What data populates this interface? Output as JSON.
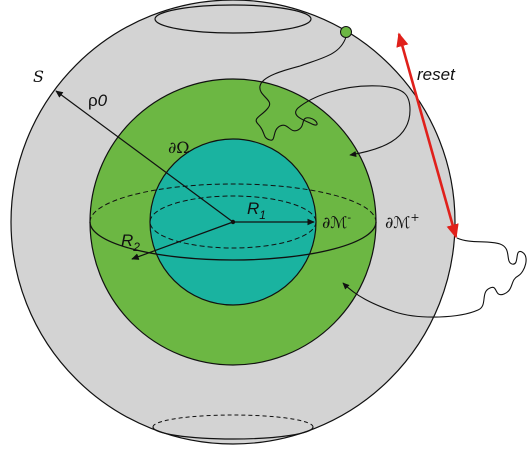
{
  "labels": {
    "s": "S",
    "rho": "ρ",
    "rho_sub": "0",
    "reset": "reset",
    "d_omega": "∂Ω",
    "r1_main": "R",
    "r1_sub": "1",
    "r2_main": "R",
    "r2_sub": "2",
    "dm_minus_main": "∂ℳ",
    "dm_minus_sup": "-",
    "dm_plus_main": "∂ℳ",
    "dm_plus_sup": "+"
  },
  "colors": {
    "outer_sphere": "#d3d3d3",
    "middle_sphere": "#6cb743",
    "inner_sphere": "#1ab3a0",
    "reset_arrow": "#e0201b",
    "particle": "#6cb743",
    "stroke": "#111111"
  }
}
